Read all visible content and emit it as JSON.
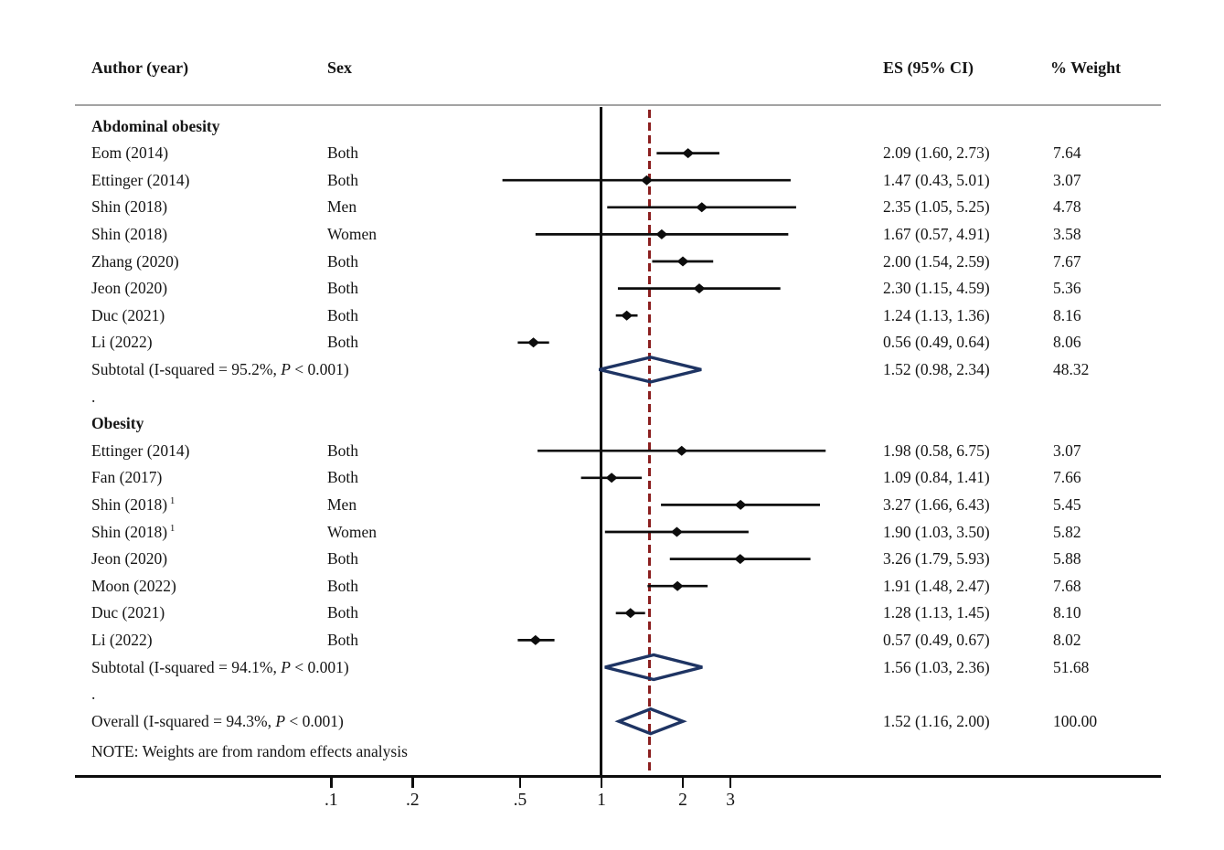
{
  "colors": {
    "text": "#151515",
    "line": "#0d0d0d",
    "separator": "#a3a3a3",
    "ref_line": "#8b1f1f",
    "diamond_outline": "#1e3463"
  },
  "chart_data": {
    "type": "forest",
    "columns": {
      "author": "Author (year)",
      "sex": "Sex",
      "es": "ES (95% CI)",
      "weight": "% Weight"
    },
    "x_axis": {
      "scale": "log",
      "tick_values": [
        0.1,
        0.2,
        0.5,
        1,
        2,
        3
      ],
      "tick_labels": [
        ".1",
        ".2",
        ".5",
        "1",
        "2",
        "3"
      ],
      "null_value": 1,
      "ref_line_value": 1.52
    },
    "note": "NOTE: Weights are from random effects analysis",
    "rows": [
      {
        "kind": "section",
        "label": "Abdominal obesity"
      },
      {
        "kind": "study",
        "author": "Eom (2014)",
        "sex": "Both",
        "es": 2.09,
        "lo": 1.6,
        "hi": 2.73,
        "es_text": "2.09 (1.60, 2.73)",
        "weight": "7.64"
      },
      {
        "kind": "study",
        "author": "Ettinger (2014)",
        "sex": "Both",
        "es": 1.47,
        "lo": 0.43,
        "hi": 5.01,
        "es_text": "1.47 (0.43, 5.01)",
        "weight": "3.07"
      },
      {
        "kind": "study",
        "author": "Shin (2018)",
        "sex": "Men",
        "es": 2.35,
        "lo": 1.05,
        "hi": 5.25,
        "es_text": "2.35 (1.05, 5.25)",
        "weight": "4.78"
      },
      {
        "kind": "study",
        "author": "Shin (2018)",
        "sex": "Women",
        "es": 1.67,
        "lo": 0.57,
        "hi": 4.91,
        "es_text": "1.67 (0.57, 4.91)",
        "weight": "3.58"
      },
      {
        "kind": "study",
        "author": "Zhang (2020)",
        "sex": "Both",
        "es": 2.0,
        "lo": 1.54,
        "hi": 2.59,
        "es_text": "2.00 (1.54, 2.59)",
        "weight": "7.67"
      },
      {
        "kind": "study",
        "author": "Jeon (2020)",
        "sex": "Both",
        "es": 2.3,
        "lo": 1.15,
        "hi": 4.59,
        "es_text": "2.30 (1.15, 4.59)",
        "weight": "5.36"
      },
      {
        "kind": "study",
        "author": "Duc (2021)",
        "sex": "Both",
        "es": 1.24,
        "lo": 1.13,
        "hi": 1.36,
        "es_text": "1.24 (1.13, 1.36)",
        "weight": "8.16"
      },
      {
        "kind": "study",
        "author": "Li (2022)",
        "sex": "Both",
        "es": 0.56,
        "lo": 0.49,
        "hi": 0.64,
        "es_text": "0.56 (0.49, 0.64)",
        "weight": "8.06"
      },
      {
        "kind": "subtotal",
        "label_pre": "Subtotal (I-squared = 95.2%, ",
        "label_p": "P",
        "label_post": " < 0.001)",
        "es": 1.52,
        "lo": 0.98,
        "hi": 2.34,
        "es_text": "1.52 (0.98, 2.34)",
        "weight": "48.32"
      },
      {
        "kind": "dot",
        "label": "."
      },
      {
        "kind": "section",
        "label": "Obesity"
      },
      {
        "kind": "study",
        "author": "Ettinger (2014)",
        "sex": "Both",
        "es": 1.98,
        "lo": 0.58,
        "hi": 6.75,
        "es_text": "1.98 (0.58, 6.75)",
        "weight": "3.07"
      },
      {
        "kind": "study",
        "author": "Fan (2017)",
        "sex": "Both",
        "es": 1.09,
        "lo": 0.84,
        "hi": 1.41,
        "es_text": "1.09 (0.84, 1.41)",
        "weight": "7.66"
      },
      {
        "kind": "study",
        "author": "Shin (2018)",
        "author_sup": "1",
        "sex": "Men",
        "es": 3.27,
        "lo": 1.66,
        "hi": 6.43,
        "es_text": "3.27 (1.66, 6.43)",
        "weight": "5.45"
      },
      {
        "kind": "study",
        "author": "Shin (2018)",
        "author_sup": "1",
        "sex": "Women",
        "es": 1.9,
        "lo": 1.03,
        "hi": 3.5,
        "es_text": "1.90 (1.03, 3.50)",
        "weight": "5.82"
      },
      {
        "kind": "study",
        "author": "Jeon (2020)",
        "sex": "Both",
        "es": 3.26,
        "lo": 1.79,
        "hi": 5.93,
        "es_text": "3.26 (1.79, 5.93)",
        "weight": "5.88"
      },
      {
        "kind": "study",
        "author": "Moon (2022)",
        "sex": "Both",
        "es": 1.91,
        "lo": 1.48,
        "hi": 2.47,
        "es_text": "1.91 (1.48, 2.47)",
        "weight": "7.68"
      },
      {
        "kind": "study",
        "author": "Duc (2021)",
        "sex": "Both",
        "es": 1.28,
        "lo": 1.13,
        "hi": 1.45,
        "es_text": "1.28 (1.13, 1.45)",
        "weight": "8.10"
      },
      {
        "kind": "study",
        "author": "Li (2022)",
        "sex": "Both",
        "es": 0.57,
        "lo": 0.49,
        "hi": 0.67,
        "es_text": "0.57 (0.49, 0.67)",
        "weight": "8.02"
      },
      {
        "kind": "subtotal",
        "label_pre": "Subtotal (I-squared = 94.1%, ",
        "label_p": "P",
        "label_post": " < 0.001)",
        "es": 1.56,
        "lo": 1.03,
        "hi": 2.36,
        "es_text": "1.56 (1.03, 2.36)",
        "weight": "51.68"
      },
      {
        "kind": "dot",
        "label": "."
      },
      {
        "kind": "overall",
        "label_pre": "Overall (I-squared = 94.3%, ",
        "label_p": "P",
        "label_post": " < 0.001)",
        "es": 1.52,
        "lo": 1.16,
        "hi": 2.0,
        "es_text": "1.52 (1.16, 2.00)",
        "weight": "100.00"
      }
    ]
  }
}
